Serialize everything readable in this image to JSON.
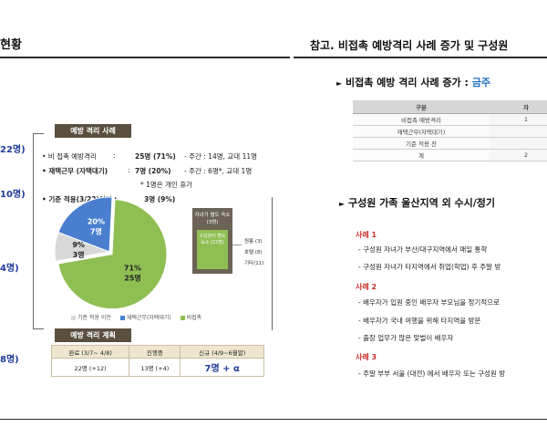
{
  "left": {
    "title": "현황",
    "side_numbers": [
      "22명)",
      "10명)",
      "4명)",
      "8명)"
    ],
    "cases_tag": "예방 격리 사례",
    "cases": {
      "r1_label": "• 비 접촉 예방격리",
      "r1_colon": ":",
      "r1_value": "25명 (71%)",
      "r1_detail": "- 주간 : 14명, 교대 11명",
      "r2_label": "• 재택근무 (자택대기)",
      "r2_colon": ":",
      "r2_value": "7명 (20%)",
      "r2_detail": "- 주간 : 6명*, 교대 1명",
      "r2_note": "* 1명은 개인 휴가",
      "r3_label": "• 기준 적용(3/22)이전 :",
      "r3_value": "3명 (9%)"
    },
    "side_note": {
      "header": "자녀가 별도 숙소 (3명)",
      "inner": "구성원이 별도 숙소 (22명)"
    },
    "right_legend": [
      "원룸 (3)",
      "호텔 (8)",
      "기타(11)"
    ],
    "pie_legend": [
      "기준 적용 이전",
      "재택근무(자택대기)",
      "비접촉"
    ],
    "plan_tag": "예방 격리 계획",
    "plan_table": {
      "headers": [
        "완료 (3/7~ 4/8)",
        "진행중",
        "신규 (4/9~6월말)"
      ],
      "values": [
        "22명 (+12)",
        "13명 (+4)",
        "7명 + α"
      ]
    }
  },
  "chart_data": {
    "type": "pie",
    "slices": [
      {
        "name": "비접촉",
        "label_pct": "71%",
        "label_count": "25명",
        "value": 25,
        "color": "#8fbf52"
      },
      {
        "name": "재택근무(자택대기)",
        "label_pct": "20%",
        "label_count": "7명",
        "value": 7,
        "color": "#4a7fd0"
      },
      {
        "name": "기준 적용 이전",
        "label_pct": "9%",
        "label_count": "3명",
        "value": 3,
        "color": "#d8d8d8"
      }
    ],
    "legend_position": "bottom"
  },
  "right": {
    "title": "참고. 비접촉 예방격리 사례 증가 및 구성원",
    "section1_arrow": "►",
    "section1": "비접촉 예방 격리 사례  증가 : ",
    "section1_hl": "금주",
    "table": {
      "headers": [
        "구분",
        "자"
      ],
      "rows": [
        [
          "비접촉 예방격리",
          "1"
        ],
        [
          "재택근무(자택대기)",
          ""
        ],
        [
          "기준 적용 전",
          ""
        ],
        [
          "계",
          "2"
        ]
      ]
    },
    "section2_arrow": "►",
    "section2": "구성원 가족 울산지역 외 수시/정기",
    "cases": [
      {
        "title": "사례 1",
        "lines": [
          "-  구성원 자녀가 부산/대구지역에서 매일 통학",
          "-  구성원 자녀가 타지역에서 취업(학업) 후 주말 방"
        ]
      },
      {
        "title": "사례 2",
        "lines": [
          "-  배우자가 입원 중인 배우자 부모님을 정기적으로",
          "-  배우자가 국내 여행을 위해 타지역을 방문",
          "-  출장 업무가 많은 맞벌이 배우자"
        ]
      },
      {
        "title": "사례 3",
        "lines": [
          "-  주말 부부 서울 (대전) 에서 배우자 또는 구성원 방"
        ]
      }
    ]
  },
  "colors": {
    "accent_blue": "#1f3c9a",
    "brown": "#5a5040",
    "green": "#8fbf52",
    "red": "#c9302c"
  }
}
